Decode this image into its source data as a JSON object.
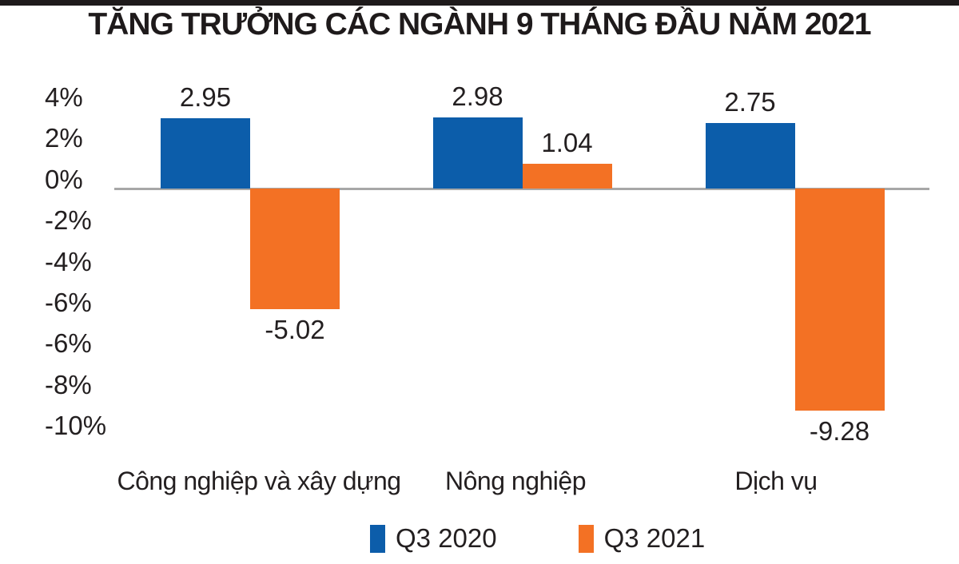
{
  "page": {
    "background_color": "#ffffff",
    "top_bar_color": "#1e1a1b",
    "text_color": "#231f20"
  },
  "chart_data": {
    "type": "bar",
    "title": "TĂNG TRƯỞNG CÁC NGÀNH 9 THÁNG ĐẦU NĂM 2021",
    "categories": [
      "Công nghiệp và xây dựng",
      "Nông nghiệp",
      "Dịch vụ"
    ],
    "series": [
      {
        "name": "Q3 2020",
        "color": "#0c5daa",
        "values": [
          2.95,
          2.98,
          2.75
        ]
      },
      {
        "name": "Q3 2021",
        "color": "#f37124",
        "values": [
          -5.02,
          1.04,
          -9.28
        ]
      }
    ],
    "value_label_decimals": 2,
    "y_ticks": [
      "4%",
      "2%",
      "0%",
      "-2%",
      "-4%",
      "-6%",
      "-6%",
      "-8%",
      "-10%"
    ],
    "ylim": [
      -10,
      4
    ],
    "axis_color": "#a7a7a7",
    "grid": false,
    "legend_position": "bottom"
  }
}
